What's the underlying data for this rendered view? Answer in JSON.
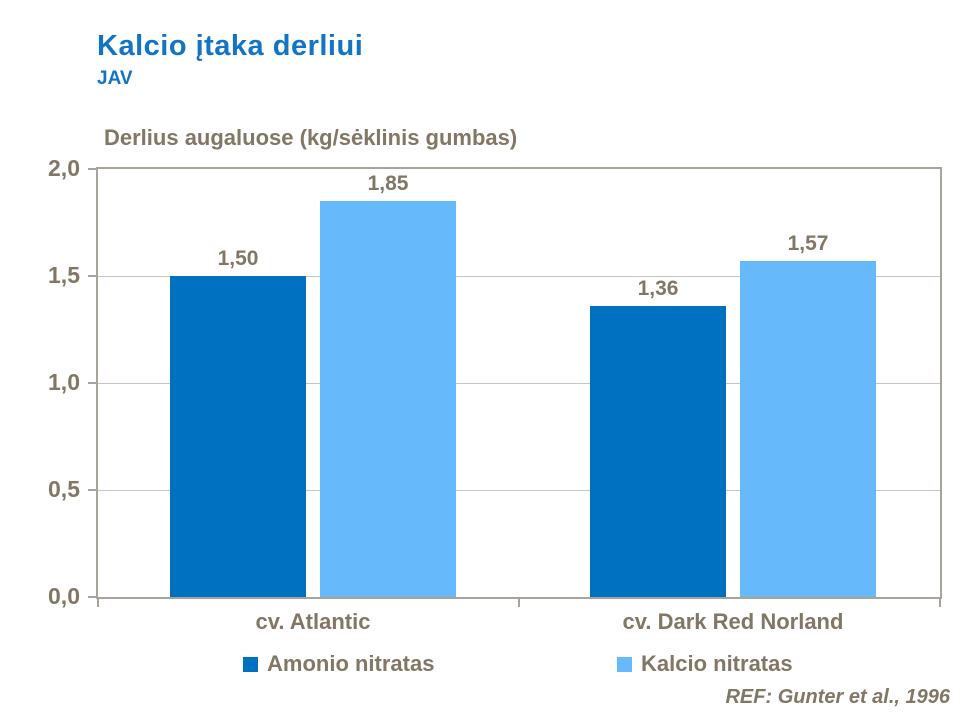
{
  "header": {
    "title": "Kalcio įtaka derliui",
    "subtitle": "JAV"
  },
  "chart_data": {
    "type": "bar",
    "title": "Derlius augaluose (kg/sėklinis gumbas)",
    "categories": [
      "cv. Atlantic",
      "cv. Dark Red Norland"
    ],
    "series": [
      {
        "name": "Amonio nitratas",
        "color": "#0071C1",
        "values": [
          1.5,
          1.36
        ],
        "value_labels": [
          "1,50",
          "1,36"
        ]
      },
      {
        "name": "Kalcio nitratas",
        "color": "#66BAFB",
        "values": [
          1.85,
          1.57
        ],
        "value_labels": [
          "1,85",
          "1,57"
        ]
      }
    ],
    "ylim": [
      0,
      2
    ],
    "yticks": [
      "0,0",
      "0,5",
      "1,0",
      "1,5",
      "2,0"
    ],
    "grid": true,
    "legend_position": "bottom",
    "xlabel": "",
    "ylabel": ""
  },
  "footer": {
    "reference": "REF: Gunter et al., 1996"
  },
  "colors": {
    "title_blue": "#1274C5",
    "text_brown": "#827664",
    "axis_gray": "#A9A49B",
    "gridline_gray": "#C9C5BC",
    "series_dark_blue": "#0071C1",
    "series_light_blue": "#66BAFB",
    "background": "#FFFFFF"
  }
}
